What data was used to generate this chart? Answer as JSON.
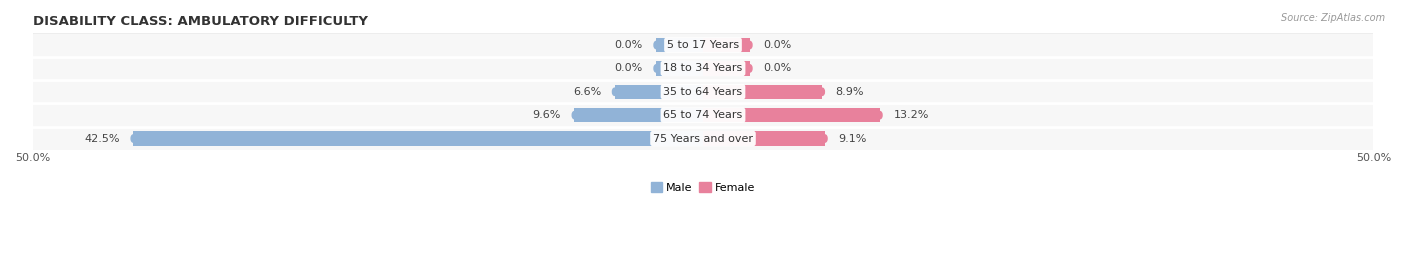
{
  "title": "DISABILITY CLASS: AMBULATORY DIFFICULTY",
  "source": "Source: ZipAtlas.com",
  "categories": [
    "5 to 17 Years",
    "18 to 34 Years",
    "35 to 64 Years",
    "65 to 74 Years",
    "75 Years and over"
  ],
  "male_values": [
    0.0,
    0.0,
    6.6,
    9.6,
    42.5
  ],
  "female_values": [
    0.0,
    0.0,
    8.9,
    13.2,
    9.1
  ],
  "male_color": "#91b3d7",
  "female_color": "#e8819c",
  "row_bg_color": "#ebebeb",
  "row_inner_color": "#f7f7f7",
  "xlim": 50.0,
  "title_fontsize": 9.5,
  "label_fontsize": 8,
  "tick_fontsize": 8,
  "bar_height": 0.62,
  "figsize": [
    14.06,
    2.69
  ],
  "dpi": 100,
  "zero_stub": 3.5
}
